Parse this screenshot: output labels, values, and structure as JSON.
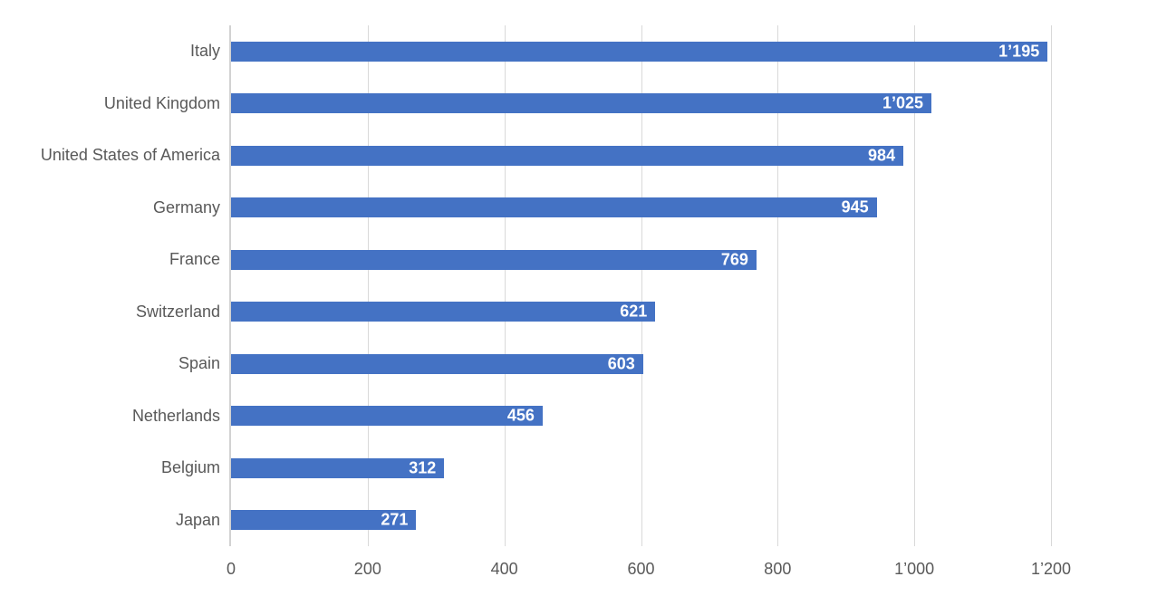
{
  "chart_data": {
    "type": "bar",
    "orientation": "horizontal",
    "title": "",
    "categories": [
      "Italy",
      "United Kingdom",
      "United States of America",
      "Germany",
      "France",
      "Switzerland",
      "Spain",
      "Netherlands",
      "Belgium",
      "Japan"
    ],
    "values": [
      1195,
      1025,
      984,
      945,
      769,
      621,
      603,
      456,
      312,
      271
    ],
    "value_labels": [
      "1’195",
      "1’025",
      "984",
      "945",
      "769",
      "621",
      "603",
      "456",
      "312",
      "271"
    ],
    "xlabel": "",
    "ylabel": "",
    "xlim": [
      0,
      1200
    ],
    "x_ticks": [
      {
        "label": "0",
        "value": 0
      },
      {
        "label": "200",
        "value": 200
      },
      {
        "label": "400",
        "value": 400
      },
      {
        "label": "600",
        "value": 600
      },
      {
        "label": "800",
        "value": 800
      },
      {
        "label": "1’000",
        "value": 1000
      },
      {
        "label": "1’200",
        "value": 1200
      }
    ],
    "grid": "vertical-gridlines-on",
    "legend": "none",
    "value_labels_position": "inside-end",
    "colors": {
      "bar": "#4472C4",
      "value_label": "#FFFFFF",
      "category_label": "#595959",
      "tick_label": "#595959",
      "gridline": "#D9D9D9",
      "axis_line": "#D2D2D2",
      "background": "#FFFFFF"
    }
  }
}
